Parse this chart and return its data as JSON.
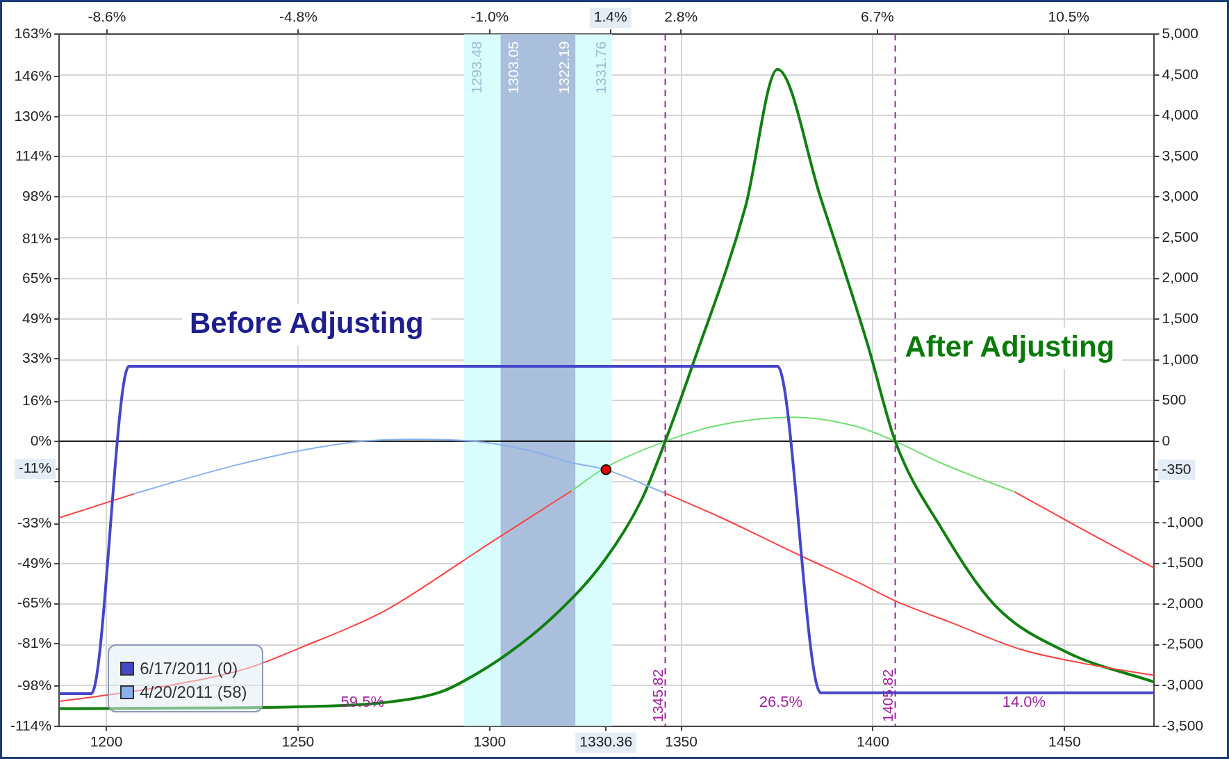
{
  "chart_data": {
    "type": "line",
    "xlim": [
      1187.7,
      1473.4
    ],
    "xticks": [
      1200,
      1250,
      1300,
      {
        "value": 1330.36,
        "label": "1330.36"
      },
      1350,
      1400,
      1450
    ],
    "x2lim": [
      -9.55,
      12.2
    ],
    "x2ticks": [
      {
        "value": -8.6,
        "label": "-8.6%"
      },
      {
        "value": -4.8,
        "label": "-4.8%"
      },
      {
        "value": -1.0,
        "label": "-1.0%"
      },
      {
        "value": 1.4,
        "label": "1.4%"
      },
      {
        "value": 2.8,
        "label": "2.8%"
      },
      {
        "value": 6.7,
        "label": "6.7%"
      },
      {
        "value": 10.5,
        "label": "10.5%"
      }
    ],
    "ylim": [
      -114,
      163
    ],
    "yticks": [
      {
        "value": 163,
        "label": "163%"
      },
      {
        "value": 146,
        "label": "146%"
      },
      {
        "value": 130,
        "label": "130%"
      },
      {
        "value": 114,
        "label": "114%"
      },
      {
        "value": 98,
        "label": "98%"
      },
      {
        "value": 81,
        "label": "81%"
      },
      {
        "value": 65,
        "label": "65%"
      },
      {
        "value": 49,
        "label": "49%"
      },
      {
        "value": 33,
        "label": "33%"
      },
      {
        "value": 16,
        "label": "16%"
      },
      {
        "value": 0,
        "label": "0%"
      },
      {
        "value": -16,
        "label": null
      },
      {
        "value": -11,
        "label": "-11%"
      },
      {
        "value": -33,
        "label": "-33%"
      },
      {
        "value": -49,
        "label": "-49%"
      },
      {
        "value": -65,
        "label": "-65%"
      },
      {
        "value": -81,
        "label": "-81%"
      },
      {
        "value": -98,
        "label": "-98%"
      },
      {
        "value": -114,
        "label": "-114%"
      }
    ],
    "y2lim": [
      -3500,
      5000
    ],
    "y2ticks": [
      {
        "value": 5000,
        "label": "5,000"
      },
      {
        "value": 4500,
        "label": "4,500"
      },
      {
        "value": 4000,
        "label": "4,000"
      },
      {
        "value": 3500,
        "label": "3,500"
      },
      {
        "value": 3000,
        "label": "3,000"
      },
      {
        "value": 2500,
        "label": "2,500"
      },
      {
        "value": 2000,
        "label": "2,000"
      },
      {
        "value": 1500,
        "label": "1,500"
      },
      {
        "value": 1000,
        "label": "1,000"
      },
      500,
      0,
      {
        "value": -500,
        "label": null
      },
      -350,
      {
        "value": -1000,
        "label": "-1,000"
      },
      {
        "value": -1500,
        "label": "-1,500"
      },
      {
        "value": -2000,
        "label": "-2,000"
      },
      {
        "value": -2500,
        "label": "-2,500"
      },
      {
        "value": -3000,
        "label": "-3,000"
      },
      {
        "value": -3500,
        "label": "-3,500"
      }
    ],
    "grid": true,
    "legend": "bottom left",
    "series": [
      {
        "name": "6/17/2011 (0)",
        "color": "#4646c8",
        "axis": "y2",
        "x": [
          1187.7,
          1196.1,
          1205.9,
          1375.1,
          1386.4,
          1473.4
        ],
        "values": [
          -3100,
          -3100,
          920,
          920,
          -3090,
          -3090
        ]
      },
      {
        "name": "4/20/2011 (58)",
        "color": "#8ab0f0",
        "axis": "y2",
        "x": [
          1207.3,
          1220,
          1235,
          1250.9,
          1266.8,
          1279.9,
          1295.9,
          1310,
          1321.3,
          1330.36,
          1345.3
        ],
        "values": [
          -645,
          -470,
          -280,
          -113,
          0,
          25,
          0,
          -110,
          -262,
          -350,
          -628
        ]
      },
      {
        "color": "#ff4040",
        "axis": "y2",
        "x": [
          1187.7,
          1207.3
        ],
        "values": [
          -940,
          -645
        ]
      },
      {
        "color": "#ff4040",
        "axis": "y2",
        "x": [
          1345.3,
          1360,
          1381.4,
          1396.8,
          1406.3,
          1420,
          1438.7,
          1455,
          1473.4
        ],
        "values": [
          -628,
          -930,
          -1412,
          -1748,
          -1971,
          -2220,
          -2559,
          -2730,
          -2875
        ]
      },
      {
        "color": "#118011",
        "axis": "y2",
        "x": [
          1187.7,
          1230,
          1250.9,
          1272.6,
          1287.2,
          1293.1,
          1305,
          1317.6,
          1329.9,
          1339.7,
          1345.82,
          1353.2,
          1366.7,
          1375.1,
          1386.4,
          1398.6,
          1405.82,
          1417.8,
          1431.9,
          1450.6,
          1473.4
        ],
        "values": [
          -3285,
          -3275,
          -3260,
          -3210,
          -3080,
          -2950,
          -2600,
          -2110,
          -1468,
          -713,
          0,
          968,
          2873,
          4569,
          2984,
          1192,
          0,
          -1064,
          -2019,
          -2592,
          -2958
        ]
      },
      {
        "color": "#ff4040",
        "axis": "y2",
        "x": [
          1187.7,
          1210,
          1236.3,
          1250.9,
          1272.6,
          1293.1,
          1299.3,
          1321.3
        ],
        "values": [
          -3195,
          -3050,
          -2796,
          -2531,
          -2083,
          -1468,
          -1275,
          -612
        ]
      },
      {
        "color": "#6ee06e",
        "axis": "y2",
        "x": [
          1321.3,
          1330,
          1345.82,
          1360,
          1379,
          1395,
          1405.82,
          1417.8,
          1437
        ],
        "values": [
          -612,
          -330,
          0,
          200,
          296,
          190,
          0,
          -268,
          -623
        ]
      },
      {
        "color": "#ff4040",
        "axis": "y2",
        "x": [
          1437,
          1455,
          1473.4
        ],
        "values": [
          -623,
          -1090,
          -1558
        ]
      },
      {
        "type": "scatter",
        "color": "#e00000",
        "axis": "y2",
        "x": [
          1330.36
        ],
        "values": [
          -350
        ]
      }
    ],
    "bands": [
      {
        "axis": "x",
        "from": 1293.48,
        "to": 1331.76,
        "color": "#d9fdfd"
      },
      {
        "axis": "x",
        "from": 1303.05,
        "to": 1322.19,
        "color": "#aabfdc"
      }
    ],
    "ref_lines": [
      {
        "axis": "x",
        "value": 1293.48,
        "label": "1293.48",
        "color": "#d9fdfd"
      },
      {
        "axis": "x",
        "value": 1303.05,
        "label": "1303.05",
        "color": "#aabfdc"
      },
      {
        "axis": "x",
        "value": 1322.19,
        "label": "1322.19",
        "color": "#aabfdc"
      },
      {
        "axis": "x",
        "value": 1331.76,
        "label": "1331.76",
        "color": "#d9fdfd"
      },
      {
        "axis": "x",
        "value": 1345.82,
        "label": "1345.82",
        "color": "#a020a0",
        "line_style": "dashed"
      },
      {
        "axis": "x",
        "value": 1405.82,
        "label": "1405.82",
        "color": "#a020a0",
        "line_style": "dashed"
      },
      {
        "axis": "y2",
        "value": 0,
        "color": "#000000"
      }
    ],
    "annotations": [
      "Before Adjusting",
      "After Adjusting",
      "59.5%",
      "26.5%",
      "14.0%"
    ]
  }
}
